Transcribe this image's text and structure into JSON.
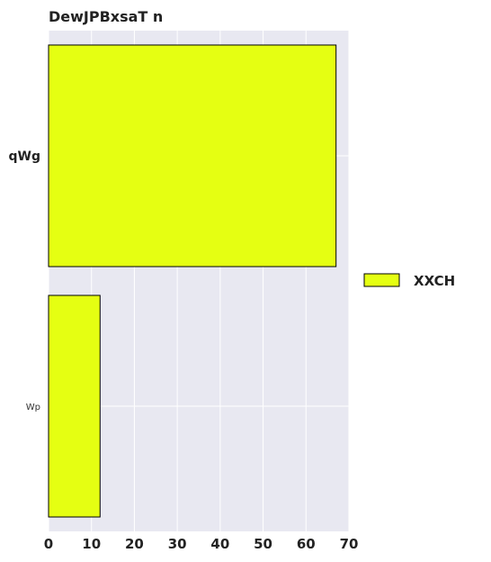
{
  "chart_data": {
    "type": "bar",
    "orientation": "horizontal",
    "title": "DewJPBxsaT n",
    "categories": [
      "qWg",
      "Wp"
    ],
    "series": [
      {
        "name": "XXCH",
        "values": [
          67,
          12
        ],
        "color": "#e5ff12"
      }
    ],
    "xlim": [
      0,
      70
    ],
    "xticks": [
      0,
      10,
      20,
      30,
      40,
      50,
      60,
      70
    ],
    "grid": true,
    "legend_position": "right",
    "background_color": "#e8e8f1",
    "grid_color": "#ffffff"
  }
}
